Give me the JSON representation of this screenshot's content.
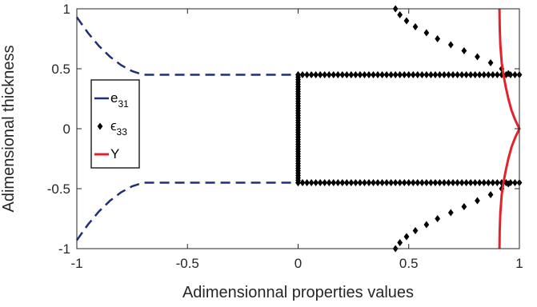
{
  "chart_data": {
    "type": "line",
    "xlabel": "Adimensionnal properties values",
    "ylabel": "Adimensional thickness",
    "xlim": [
      -1,
      1
    ],
    "ylim": [
      -1,
      1
    ],
    "xticks": [
      "-1",
      "-0.5",
      "0",
      "0.5",
      "1"
    ],
    "yticks": [
      "1",
      "0.5",
      "0",
      "-0.5",
      "-1"
    ],
    "grid": false,
    "legend_position": "left",
    "series": [
      {
        "name": "e",
        "name_sub": "31",
        "style": "dashed",
        "color": "#1f2d7a",
        "segments": [
          {
            "x": [
              -1.0,
              -0.95,
              -0.9,
              -0.85,
              -0.8,
              -0.75,
              -0.7,
              0.0
            ],
            "y": [
              0.93,
              0.8,
              0.69,
              0.6,
              0.53,
              0.48,
              0.45,
              0.45
            ]
          },
          {
            "x": [
              -1.0,
              -0.95,
              -0.9,
              -0.85,
              -0.8,
              -0.75,
              -0.7,
              0.0
            ],
            "y": [
              -0.93,
              -0.8,
              -0.69,
              -0.6,
              -0.53,
              -0.48,
              -0.45,
              -0.45
            ]
          }
        ]
      },
      {
        "name": "ϵ",
        "name_sub": "33",
        "style": "diamond-markers",
        "color": "#000000",
        "segments": [
          {
            "x": [
              0.44,
              0.46,
              0.49,
              0.53,
              0.58,
              0.63,
              0.69,
              0.75,
              0.81,
              0.87,
              0.92,
              0.95
            ],
            "y": [
              1.0,
              0.95,
              0.9,
              0.85,
              0.8,
              0.75,
              0.7,
              0.65,
              0.6,
              0.55,
              0.5,
              0.46
            ]
          },
          {
            "x": [
              0.0,
              0.02,
              0.04,
              0.06,
              0.08,
              0.1,
              0.12,
              0.14,
              0.16,
              0.18,
              0.2,
              0.22,
              0.24,
              0.26,
              0.28,
              0.3,
              0.32,
              0.34,
              0.36,
              0.38,
              0.4,
              0.42,
              0.44,
              0.46,
              0.48,
              0.5,
              0.52,
              0.54,
              0.56,
              0.58,
              0.6,
              0.62,
              0.64,
              0.66,
              0.68,
              0.7,
              0.72,
              0.74,
              0.76,
              0.78,
              0.8,
              0.82,
              0.84,
              0.86,
              0.88,
              0.9,
              0.92,
              0.94,
              0.96,
              0.98,
              1.0
            ],
            "y": [
              0.45,
              0.45,
              0.45,
              0.45,
              0.45,
              0.45,
              0.45,
              0.45,
              0.45,
              0.45,
              0.45,
              0.45,
              0.45,
              0.45,
              0.45,
              0.45,
              0.45,
              0.45,
              0.45,
              0.45,
              0.45,
              0.45,
              0.45,
              0.45,
              0.45,
              0.45,
              0.45,
              0.45,
              0.45,
              0.45,
              0.45,
              0.45,
              0.45,
              0.45,
              0.45,
              0.45,
              0.45,
              0.45,
              0.45,
              0.45,
              0.45,
              0.45,
              0.45,
              0.45,
              0.45,
              0.45,
              0.45,
              0.45,
              0.45,
              0.45,
              0.45
            ]
          },
          {
            "x": [
              0.0,
              0.0,
              0.0,
              0.0,
              0.0,
              0.0,
              0.0,
              0.0,
              0.0,
              0.0,
              0.0,
              0.0,
              0.0,
              0.0,
              0.0,
              0.0,
              0.0,
              0.0,
              0.0,
              0.0,
              0.0,
              0.0,
              0.0,
              0.0,
              0.0,
              0.0,
              0.0,
              0.0,
              0.0,
              0.0,
              0.0,
              0.0,
              0.0,
              0.0,
              0.0,
              0.0,
              0.0,
              0.0,
              0.0,
              0.0,
              0.0,
              0.0,
              0.0,
              0.0,
              0.0,
              0.0
            ],
            "y": [
              0.45,
              0.43,
              0.41,
              0.39,
              0.37,
              0.35,
              0.33,
              0.31,
              0.29,
              0.27,
              0.25,
              0.23,
              0.21,
              0.19,
              0.17,
              0.15,
              0.13,
              0.11,
              0.09,
              0.07,
              0.05,
              0.03,
              0.01,
              -0.01,
              -0.03,
              -0.05,
              -0.07,
              -0.09,
              -0.11,
              -0.13,
              -0.15,
              -0.17,
              -0.19,
              -0.21,
              -0.23,
              -0.25,
              -0.27,
              -0.29,
              -0.31,
              -0.33,
              -0.35,
              -0.37,
              -0.39,
              -0.41,
              -0.43,
              -0.45
            ]
          },
          {
            "x": [
              0.0,
              0.02,
              0.04,
              0.06,
              0.08,
              0.1,
              0.12,
              0.14,
              0.16,
              0.18,
              0.2,
              0.22,
              0.24,
              0.26,
              0.28,
              0.3,
              0.32,
              0.34,
              0.36,
              0.38,
              0.4,
              0.42,
              0.44,
              0.46,
              0.48,
              0.5,
              0.52,
              0.54,
              0.56,
              0.58,
              0.6,
              0.62,
              0.64,
              0.66,
              0.68,
              0.7,
              0.72,
              0.74,
              0.76,
              0.78,
              0.8,
              0.82,
              0.84,
              0.86,
              0.88,
              0.9,
              0.92,
              0.94,
              0.96,
              0.98,
              1.0
            ],
            "y": [
              -0.45,
              -0.45,
              -0.45,
              -0.45,
              -0.45,
              -0.45,
              -0.45,
              -0.45,
              -0.45,
              -0.45,
              -0.45,
              -0.45,
              -0.45,
              -0.45,
              -0.45,
              -0.45,
              -0.45,
              -0.45,
              -0.45,
              -0.45,
              -0.45,
              -0.45,
              -0.45,
              -0.45,
              -0.45,
              -0.45,
              -0.45,
              -0.45,
              -0.45,
              -0.45,
              -0.45,
              -0.45,
              -0.45,
              -0.45,
              -0.45,
              -0.45,
              -0.45,
              -0.45,
              -0.45,
              -0.45,
              -0.45,
              -0.45,
              -0.45,
              -0.45,
              -0.45,
              -0.45,
              -0.45,
              -0.45,
              -0.45,
              -0.45,
              -0.45
            ]
          },
          {
            "x": [
              0.95,
              0.92,
              0.87,
              0.81,
              0.75,
              0.69,
              0.63,
              0.58,
              0.53,
              0.49,
              0.46,
              0.44
            ],
            "y": [
              -0.46,
              -0.5,
              -0.55,
              -0.6,
              -0.65,
              -0.7,
              -0.75,
              -0.8,
              -0.85,
              -0.9,
              -0.95,
              -1.0
            ]
          }
        ]
      },
      {
        "name": "Y",
        "name_sub": "",
        "style": "solid",
        "color": "#e3222b",
        "segments": [
          {
            "x": [
              0.91,
              0.911,
              0.914,
              0.92,
              0.928,
              0.938,
              0.95,
              0.965,
              0.982,
              1.0,
              0.982,
              0.965,
              0.95,
              0.938,
              0.928,
              0.92,
              0.914,
              0.911,
              0.91
            ],
            "y": [
              1.0,
              0.85,
              0.7,
              0.55,
              0.45,
              0.35,
              0.25,
              0.15,
              0.07,
              0.0,
              -0.07,
              -0.15,
              -0.25,
              -0.35,
              -0.45,
              -0.55,
              -0.7,
              -0.85,
              -1.0
            ]
          }
        ]
      }
    ]
  }
}
